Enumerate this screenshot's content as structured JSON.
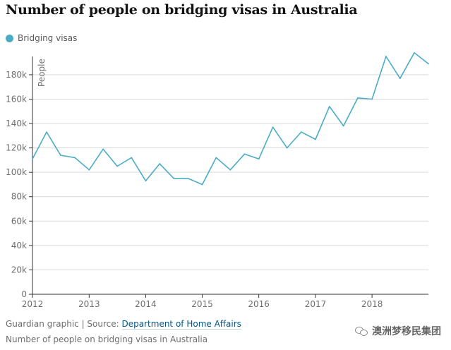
{
  "title": "Number of people on bridging visas in Australia",
  "colors": {
    "series": "#4bacc6",
    "axis": "#333333",
    "grid": "#d9d9d9",
    "text": "#6e6e6e"
  },
  "footer": {
    "source_prefix": "Guardian graphic | Source: ",
    "source_link": "Department of Home Affairs",
    "caption": "Number of people on bridging visas in Australia",
    "watermark": "澳洲梦移民集团",
    "watermark_icon": "wechat-icon"
  },
  "chart_data": {
    "type": "line",
    "title": "Number of people on bridging visas in Australia",
    "xlabel": "",
    "ylabel": "People",
    "xlim": [
      "2012-01-01",
      "2018-12-31"
    ],
    "ylim": [
      0,
      195000
    ],
    "grid": true,
    "legend": "top-left",
    "y_ticks": [
      0,
      20000,
      40000,
      60000,
      80000,
      100000,
      120000,
      140000,
      160000,
      180000
    ],
    "y_tick_labels": [
      "0",
      "20k",
      "40k",
      "60k",
      "80k",
      "100k",
      "120k",
      "140k",
      "160k",
      "180k"
    ],
    "x_ticks": [
      "2012-01-01",
      "2013-01-01",
      "2014-01-01",
      "2015-01-01",
      "2016-01-01",
      "2017-01-01",
      "2018-01-01"
    ],
    "x_tick_labels": [
      "2012",
      "2013",
      "2014",
      "2015",
      "2016",
      "2017",
      "2018"
    ],
    "series": [
      {
        "name": "Bridging visas",
        "x": [
          "2012-01-01",
          "2012-04-01",
          "2012-07-01",
          "2012-10-01",
          "2013-01-01",
          "2013-04-01",
          "2013-07-01",
          "2013-10-01",
          "2014-01-01",
          "2014-04-01",
          "2014-07-01",
          "2014-10-01",
          "2015-01-01",
          "2015-04-01",
          "2015-07-01",
          "2015-10-01",
          "2016-01-01",
          "2016-04-01",
          "2016-07-01",
          "2016-10-01",
          "2017-01-01",
          "2017-04-01",
          "2017-07-01",
          "2017-10-01",
          "2018-01-01",
          "2018-04-01",
          "2018-07-01",
          "2018-10-01",
          "2018-12-31"
        ],
        "values": [
          111000,
          133000,
          114000,
          112000,
          102000,
          119000,
          105000,
          112000,
          93000,
          107000,
          95000,
          95000,
          90000,
          112000,
          102000,
          115000,
          111000,
          137000,
          120000,
          133000,
          127000,
          154000,
          138000,
          161000,
          160000,
          195000,
          177000,
          198000,
          189000
        ]
      }
    ]
  }
}
